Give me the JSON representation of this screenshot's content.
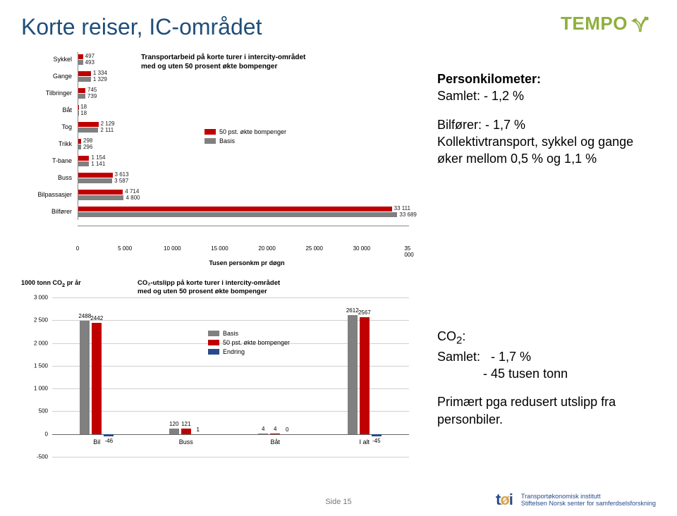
{
  "title": "Korte reiser, IC-området",
  "logo": {
    "text": "TEMPO"
  },
  "colors": {
    "c50": "#c00000",
    "cbasis": "#808080",
    "cendring": "#264a8c",
    "grid": "#d0d0d0",
    "title": "#1f4e79"
  },
  "chart1": {
    "title_l1": "Transportarbeid på korte turer i intercity-området",
    "title_l2": "med og uten 50 prosent økte bompenger",
    "xlabel": "Tusen personkm pr døgn",
    "xmax": 35000,
    "xticks": [
      0,
      5000,
      10000,
      15000,
      20000,
      25000,
      30000,
      35000
    ],
    "xticklabels": [
      "0",
      "5 000",
      "10 000",
      "15 000",
      "20 000",
      "25 000",
      "30 000",
      "35 000"
    ],
    "legend": [
      {
        "label": "50 pst. økte bompenger",
        "color": "#c00000"
      },
      {
        "label": "Basis",
        "color": "#808080"
      }
    ],
    "rows": [
      {
        "cat": "Sykkel",
        "v50": 497,
        "vb": 493,
        "l50": "497",
        "lb": "493"
      },
      {
        "cat": "Gange",
        "v50": 1334,
        "vb": 1329,
        "l50": "1 334",
        "lb": "1 329"
      },
      {
        "cat": "Tilbringer",
        "v50": 745,
        "vb": 739,
        "l50": "745",
        "lb": "739"
      },
      {
        "cat": "Båt",
        "v50": 18,
        "vb": 18,
        "l50": "18",
        "lb": "18"
      },
      {
        "cat": "Tog",
        "v50": 2129,
        "vb": 2111,
        "l50": "2 129",
        "lb": "2 111"
      },
      {
        "cat": "Trikk",
        "v50": 298,
        "vb": 296,
        "l50": "298",
        "lb": "296"
      },
      {
        "cat": "T-bane",
        "v50": 1154,
        "vb": 1141,
        "l50": "1 154",
        "lb": "1 141"
      },
      {
        "cat": "Buss",
        "v50": 3613,
        "vb": 3587,
        "l50": "3 613",
        "lb": "3 587"
      },
      {
        "cat": "Bilpassasjer",
        "v50": 4714,
        "vb": 4800,
        "l50": "4 714",
        "lb": "4 800"
      },
      {
        "cat": "Bilfører",
        "v50": 33111,
        "vb": 33689,
        "l50": "33 111",
        "lb": "33 689"
      }
    ]
  },
  "chart2": {
    "ylabel": "1000 tonn CO",
    "ysub": "2",
    "ysuffix": " pr år",
    "title_l1": "CO₂-utslipp på korte turer i intercity-området",
    "title_l2": "med og uten 50 prosent økte bompenger",
    "ymin": -500,
    "ymax": 3000,
    "yticks": [
      -500,
      0,
      500,
      1000,
      1500,
      2000,
      2500,
      3000
    ],
    "yticklabels": [
      "-500",
      "0",
      "500",
      "1 000",
      "1 500",
      "2 000",
      "2 500",
      "3 000"
    ],
    "legend": [
      {
        "label": "Basis",
        "color": "#808080"
      },
      {
        "label": "50 pst. økte bompenger",
        "color": "#c00000"
      },
      {
        "label": "Endring",
        "color": "#264a8c"
      }
    ],
    "groups": [
      {
        "cat": "Bil",
        "basis": 2488,
        "p50": 2442,
        "endr": -46,
        "lb": "2488",
        "l50": "2442",
        "le": "-46"
      },
      {
        "cat": "Buss",
        "basis": 120,
        "p50": 121,
        "endr": 1,
        "lb": "120",
        "l50": "121",
        "le": "1"
      },
      {
        "cat": "Båt",
        "basis": 4,
        "p50": 4,
        "endr": 0,
        "lb": "4",
        "l50": "4",
        "le": "0"
      },
      {
        "cat": "I alt",
        "basis": 2612,
        "p50": 2567,
        "endr": -45,
        "lb": "2612",
        "l50": "2567",
        "le": "-45"
      }
    ]
  },
  "textblocks": {
    "t1a": "Personkilometer:",
    "t1b": "Samlet: - 1,2 %",
    "t1c": "Bilfører: - 1,7 %",
    "t1d": "Kollektivtransport, sykkel og gange øker mellom 0,5 % og 1,1 %",
    "t2a_html": "CO<sub>2</sub>:",
    "t2a_plain": "CO",
    "t2a_sub": "2",
    "t2a_suffix": ":",
    "t2b": "Samlet:   - 1,7 %",
    "t2c": "             - 45 tusen tonn",
    "t2d": "Primært pga redusert utslipp fra personbiler."
  },
  "footer": {
    "page": "Side 15"
  },
  "toi": {
    "line1": "Transportøkonomisk institutt",
    "line2": "Stiftelsen Norsk senter for samferdselsforskning"
  }
}
